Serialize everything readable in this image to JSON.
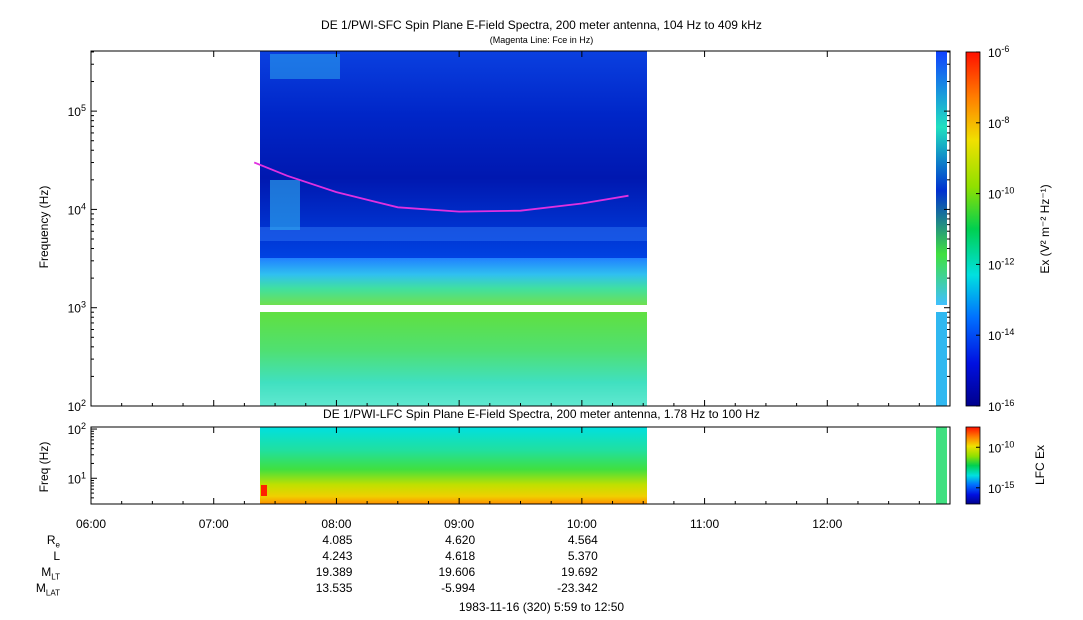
{
  "titles": {
    "top_title": "DE 1/PWI-SFC  Spin Plane E-Field Spectra, 200 meter antenna, 104 Hz to 409 kHz",
    "top_subtitle": "(Magenta Line: Fce in Hz)",
    "bottom_title": "DE 1/PWI-LFC  Spin Plane E-Field Spectra, 200 meter antenna, 1.78 Hz to 100 Hz",
    "footer": "1983-11-16 (320) 5:59 to 12:50"
  },
  "chart_data": [
    {
      "type": "heatmap",
      "name": "sfc",
      "ylabel": "Frequency (Hz)",
      "yscale": "log",
      "ylim": [
        100,
        409000
      ],
      "y_ticks": [
        {
          "value": 100,
          "base": "10",
          "exp": "2"
        },
        {
          "value": 1000,
          "base": "10",
          "exp": "3"
        },
        {
          "value": 10000,
          "base": "10",
          "exp": "4"
        },
        {
          "value": 100000,
          "base": "10",
          "exp": "5"
        }
      ],
      "colorbar": {
        "label": "Ex (V² m⁻² Hz⁻¹)",
        "scale": "log",
        "range": [
          1e-16,
          1e-06
        ],
        "ticks": [
          {
            "value": 1e-06,
            "base": "10",
            "exp": "-6"
          },
          {
            "value": 1e-08,
            "base": "10",
            "exp": "-8"
          },
          {
            "value": 1e-10,
            "base": "10",
            "exp": "-10"
          },
          {
            "value": 1e-12,
            "base": "10",
            "exp": "-12"
          },
          {
            "value": 1e-14,
            "base": "10",
            "exp": "-14"
          },
          {
            "value": 1e-16,
            "base": "10",
            "exp": "-16"
          }
        ]
      },
      "data_coverage_hours": [
        [
          7.33,
          10.38
        ],
        [
          12.73,
          12.83
        ]
      ],
      "fce_line": {
        "color": "#e030e0",
        "x_hours": [
          7.33,
          7.6,
          8.0,
          8.5,
          9.0,
          9.5,
          10.0,
          10.38
        ],
        "y_hz": [
          30000,
          22000,
          15000,
          10500,
          9500,
          9700,
          11500,
          13800
        ]
      }
    },
    {
      "type": "heatmap",
      "name": "lfc",
      "ylabel": "Freq (Hz)",
      "yscale": "log",
      "ylim": [
        3,
        110
      ],
      "y_ticks": [
        {
          "value": 10,
          "base": "10",
          "exp": "1"
        },
        {
          "value": 100,
          "base": "10",
          "exp": "2"
        }
      ],
      "colorbar": {
        "label": "LFC Ex",
        "scale": "log",
        "ticks": [
          {
            "value": 1e-10,
            "base": "10",
            "exp": "-10"
          },
          {
            "value": 1e-15,
            "base": "10",
            "exp": "-15"
          }
        ]
      },
      "data_coverage_hours": [
        [
          7.33,
          10.38
        ],
        [
          12.73,
          12.83
        ]
      ]
    }
  ],
  "time_axis": {
    "range_hours": [
      6.0,
      13.0
    ],
    "ticks": [
      {
        "hour": 6,
        "label": "06:00"
      },
      {
        "hour": 7,
        "label": "07:00"
      },
      {
        "hour": 8,
        "label": "08:00"
      },
      {
        "hour": 9,
        "label": "09:00"
      },
      {
        "hour": 10,
        "label": "10:00"
      },
      {
        "hour": 11,
        "label": "11:00"
      },
      {
        "hour": 12,
        "label": "12:00"
      }
    ]
  },
  "ephemeris": {
    "rows": [
      {
        "name": "R",
        "sub": "e",
        "values": [
          "4.085",
          "4.620",
          "4.564"
        ]
      },
      {
        "name": "L",
        "sub": "",
        "values": [
          "4.243",
          "4.618",
          "5.370"
        ]
      },
      {
        "name": "M",
        "sub": "LT",
        "values": [
          "19.389",
          "19.606",
          "19.692"
        ]
      },
      {
        "name": "M",
        "sub": "LAT",
        "values": [
          "13.535",
          "-5.994",
          "-23.342"
        ]
      }
    ],
    "hours": [
      8,
      9,
      10
    ]
  }
}
